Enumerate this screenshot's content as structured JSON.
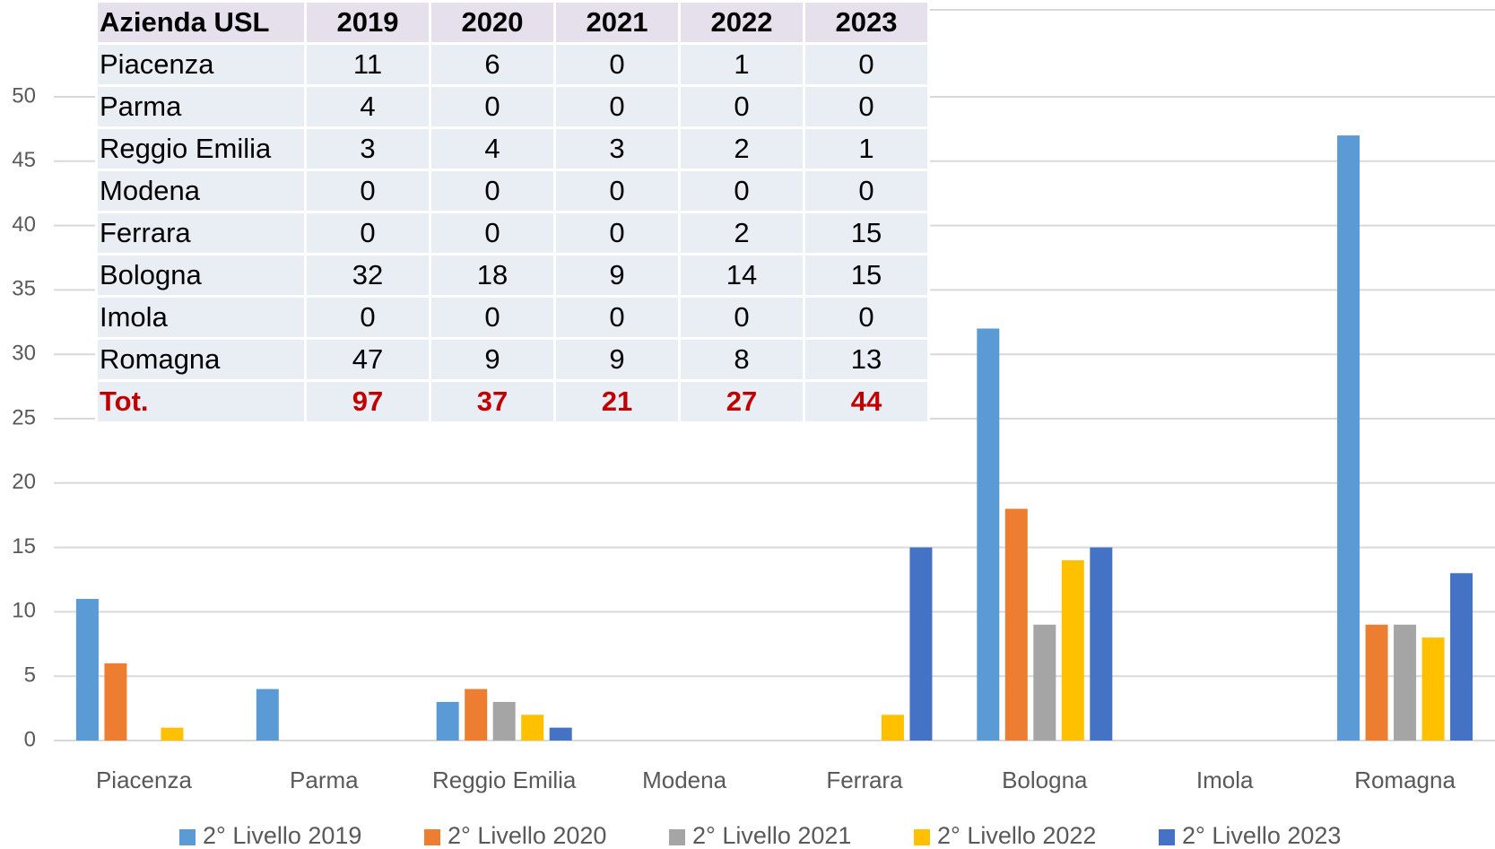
{
  "chart_data": {
    "type": "bar",
    "categories": [
      "Piacenza",
      "Parma",
      "Reggio Emilia",
      "Modena",
      "Ferrara",
      "Bologna",
      "Imola",
      "Romagna"
    ],
    "series": [
      {
        "name": "2° Livello 2019",
        "color": "#5b9bd5",
        "values": [
          11,
          4,
          3,
          0,
          0,
          32,
          0,
          47
        ]
      },
      {
        "name": "2° Livello 2020",
        "color": "#ed7d31",
        "values": [
          6,
          0,
          4,
          0,
          0,
          18,
          0,
          9
        ]
      },
      {
        "name": "2° Livello 2021",
        "color": "#a5a5a5",
        "values": [
          0,
          0,
          3,
          0,
          0,
          9,
          0,
          9
        ]
      },
      {
        "name": "2° Livello 2022",
        "color": "#ffc000",
        "values": [
          1,
          0,
          2,
          0,
          2,
          14,
          0,
          8
        ]
      },
      {
        "name": "2° Livello 2023",
        "color": "#4472c4",
        "values": [
          0,
          0,
          1,
          0,
          15,
          15,
          0,
          13
        ]
      }
    ],
    "ylim": [
      0,
      50
    ],
    "yticks": [
      0,
      5,
      10,
      15,
      20,
      25,
      30,
      35,
      40,
      45,
      50
    ],
    "grid": true,
    "legend": "bottom"
  },
  "table": {
    "header": [
      "Azienda USL",
      "2019",
      "2020",
      "2021",
      "2022",
      "2023"
    ],
    "rows": [
      [
        "Piacenza",
        11,
        6,
        0,
        1,
        0
      ],
      [
        "Parma",
        4,
        0,
        0,
        0,
        0
      ],
      [
        "Reggio Emilia",
        3,
        4,
        3,
        2,
        1
      ],
      [
        "Modena",
        0,
        0,
        0,
        0,
        0
      ],
      [
        "Ferrara",
        0,
        0,
        0,
        2,
        15
      ],
      [
        "Bologna",
        32,
        18,
        9,
        14,
        15
      ],
      [
        "Imola",
        0,
        0,
        0,
        0,
        0
      ],
      [
        "Romagna",
        47,
        9,
        9,
        8,
        13
      ]
    ],
    "total": [
      "Tot.",
      97,
      37,
      21,
      27,
      44
    ]
  }
}
